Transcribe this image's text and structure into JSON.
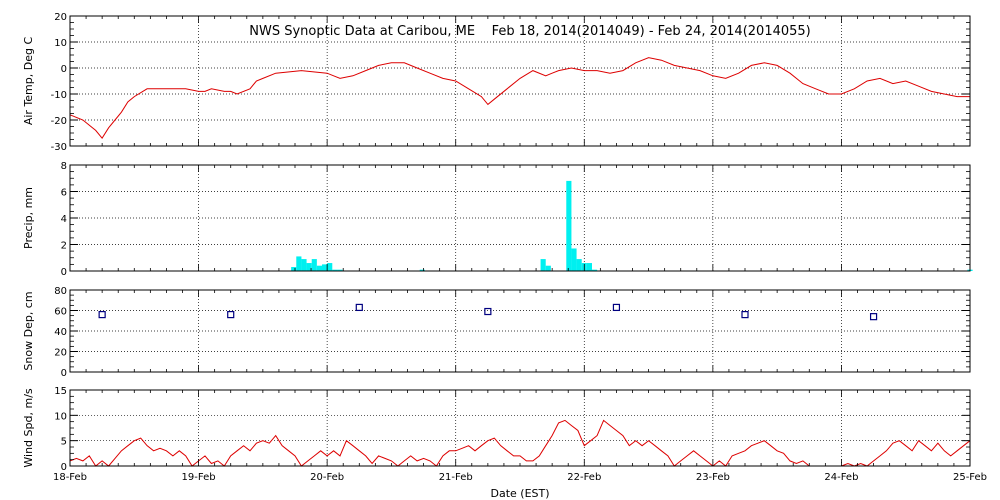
{
  "title": "NWS Synoptic Data at Caribou, ME    Feb 18, 2014(2014049) - Feb 24, 2014(2014055)",
  "xlabel": "Date (EST)",
  "colors": {
    "line": "#dd0000",
    "bar": "#00f0f0",
    "marker": "#000080",
    "grid": "#000000"
  },
  "chart_data": [
    {
      "id": "air-temp",
      "type": "line",
      "ylabel": "Air Temp, Deg C",
      "ylim": [
        -30,
        20
      ],
      "yticks": [
        -30,
        -20,
        -10,
        0,
        10,
        20
      ],
      "xlim": [
        0,
        7
      ],
      "xticks": [
        0,
        1,
        2,
        3,
        4,
        5,
        6,
        7
      ],
      "xticklabels": [
        "18-Feb",
        "19-Feb",
        "20-Feb",
        "21-Feb",
        "22-Feb",
        "23-Feb",
        "24-Feb",
        "25-Feb"
      ],
      "grid": true,
      "x": [
        0,
        0.1,
        0.2,
        0.25,
        0.3,
        0.35,
        0.4,
        0.45,
        0.5,
        0.6,
        0.8,
        0.9,
        1.0,
        1.05,
        1.1,
        1.2,
        1.25,
        1.3,
        1.4,
        1.45,
        1.5,
        1.6,
        1.8,
        2.0,
        2.05,
        2.1,
        2.2,
        2.3,
        2.4,
        2.5,
        2.6,
        2.7,
        2.8,
        2.9,
        3.0,
        3.1,
        3.2,
        3.25,
        3.3,
        3.4,
        3.5,
        3.6,
        3.7,
        3.75,
        3.8,
        3.9,
        4.0,
        4.1,
        4.2,
        4.3,
        4.4,
        4.5,
        4.6,
        4.7,
        4.8,
        4.9,
        5.0,
        5.1,
        5.2,
        5.3,
        5.4,
        5.5,
        5.6,
        5.7,
        5.8,
        5.9,
        6.0,
        6.1,
        6.2,
        6.3,
        6.4,
        6.5,
        6.6,
        6.7,
        6.8,
        6.9,
        7.0
      ],
      "y": [
        -18,
        -20,
        -24,
        -27,
        -23,
        -20,
        -17,
        -13,
        -11,
        -8,
        -8,
        -8,
        -9,
        -9,
        -8,
        -9,
        -9,
        -10,
        -8,
        -5,
        -4,
        -2,
        -1,
        -2,
        -3,
        -4,
        -3,
        -1,
        1,
        2,
        2,
        0,
        -2,
        -4,
        -5,
        -8,
        -11,
        -14,
        -12,
        -8,
        -4,
        -1,
        -3,
        -2,
        -1,
        0,
        -1,
        -1,
        -2,
        -1,
        2,
        4,
        3,
        1,
        0,
        -1,
        -3,
        -4,
        -2,
        1,
        2,
        1,
        -2,
        -6,
        -8,
        -10,
        -10,
        -8,
        -5,
        -4,
        -6,
        -5,
        -7,
        -9,
        -10,
        -11,
        -11
      ]
    },
    {
      "id": "precip",
      "type": "bar",
      "ylabel": "Precip, mm",
      "ylim": [
        0,
        8
      ],
      "yticks": [
        0,
        2,
        4,
        6,
        8
      ],
      "xlim": [
        0,
        7
      ],
      "xticks": [
        0,
        1,
        2,
        3,
        4,
        5,
        6,
        7
      ],
      "grid": true,
      "barwidth": 0.04,
      "x": [
        1.72,
        1.76,
        1.8,
        1.84,
        1.88,
        1.92,
        1.96,
        2.0,
        2.04,
        2.08,
        2.72,
        3.66,
        3.7,
        3.86,
        3.9,
        3.94,
        3.98,
        4.02,
        4.06,
        6.98
      ],
      "values": [
        0.3,
        1.1,
        0.9,
        0.6,
        0.9,
        0.4,
        0.5,
        0.6,
        0.1,
        0.1,
        0.1,
        0.9,
        0.4,
        6.8,
        1.7,
        0.9,
        0.6,
        0.6,
        0.1,
        0.1
      ]
    },
    {
      "id": "snow-depth",
      "type": "scatter",
      "ylabel": "Snow Dep, cm",
      "ylim": [
        0,
        80
      ],
      "yticks": [
        0,
        20,
        40,
        60,
        80
      ],
      "xlim": [
        0,
        7
      ],
      "xticks": [
        0,
        1,
        2,
        3,
        4,
        5,
        6,
        7
      ],
      "grid": true,
      "x": [
        0.25,
        1.25,
        2.25,
        3.25,
        4.25,
        5.25,
        6.25
      ],
      "y": [
        56,
        56,
        63,
        59,
        63,
        56,
        54
      ]
    },
    {
      "id": "wind-speed",
      "type": "line",
      "ylabel": "Wind Spd, m/s",
      "ylim": [
        0,
        15
      ],
      "yticks": [
        0,
        5,
        10,
        15
      ],
      "xlim": [
        0,
        7
      ],
      "xticks": [
        0,
        1,
        2,
        3,
        4,
        5,
        6,
        7
      ],
      "grid": true,
      "x": [
        0,
        0.05,
        0.1,
        0.15,
        0.2,
        0.25,
        0.3,
        0.35,
        0.4,
        0.45,
        0.5,
        0.55,
        0.6,
        0.65,
        0.7,
        0.75,
        0.8,
        0.85,
        0.9,
        0.95,
        1.0,
        1.05,
        1.1,
        1.15,
        1.2,
        1.25,
        1.3,
        1.35,
        1.4,
        1.45,
        1.5,
        1.55,
        1.6,
        1.65,
        1.7,
        1.75,
        1.8,
        1.85,
        1.9,
        1.95,
        2.0,
        2.05,
        2.1,
        2.15,
        2.2,
        2.25,
        2.3,
        2.35,
        2.4,
        2.45,
        2.5,
        2.55,
        2.6,
        2.65,
        2.7,
        2.75,
        2.8,
        2.85,
        2.9,
        2.95,
        3.0,
        3.05,
        3.1,
        3.15,
        3.2,
        3.25,
        3.3,
        3.35,
        3.4,
        3.45,
        3.5,
        3.55,
        3.6,
        3.65,
        3.7,
        3.75,
        3.8,
        3.85,
        3.9,
        3.95,
        4.0,
        4.05,
        4.1,
        4.15,
        4.2,
        4.25,
        4.3,
        4.35,
        4.4,
        4.45,
        4.5,
        4.55,
        4.6,
        4.65,
        4.7,
        4.75,
        4.8,
        4.85,
        4.9,
        4.95,
        5.0,
        5.05,
        5.1,
        5.15,
        5.2,
        5.25,
        5.3,
        5.35,
        5.4,
        5.45,
        5.5,
        5.55,
        5.6,
        5.65,
        5.7,
        5.75,
        5.8,
        5.85,
        5.9,
        5.95,
        6.0,
        6.05,
        6.1,
        6.15,
        6.2,
        6.25,
        6.3,
        6.35,
        6.4,
        6.45,
        6.5,
        6.55,
        6.6,
        6.65,
        6.7,
        6.75,
        6.8,
        6.85,
        6.9,
        6.95,
        7.0
      ],
      "y": [
        1,
        1.5,
        1,
        2,
        0,
        1,
        0,
        1.5,
        3,
        4,
        5,
        5.5,
        4,
        3,
        3.5,
        3,
        2,
        3,
        2,
        0,
        1,
        2,
        0.5,
        1,
        0,
        2,
        3,
        4,
        3,
        4.5,
        5,
        4.5,
        6,
        4,
        3,
        2,
        0,
        1,
        2,
        3,
        2,
        3,
        2,
        5,
        4,
        3,
        2,
        0.5,
        2,
        1.5,
        1,
        0,
        1,
        2,
        1,
        1.5,
        1,
        0,
        2,
        3,
        3,
        3.5,
        4,
        3,
        4,
        5,
        5.5,
        4,
        3,
        2,
        2,
        1,
        1,
        2,
        4,
        6,
        8.5,
        9,
        8,
        7,
        4,
        5,
        6,
        9,
        8,
        7,
        6,
        4,
        5,
        4,
        5,
        4,
        3,
        2,
        0,
        1,
        2,
        3,
        2,
        1,
        0,
        1,
        0,
        2,
        2.5,
        3,
        4,
        4.5,
        5,
        4,
        3,
        2.5,
        1,
        0.5,
        1,
        0,
        0,
        0,
        0,
        0,
        0,
        0.5,
        0,
        0.5,
        0,
        1,
        2,
        3,
        4.5,
        5,
        4,
        3,
        5,
        4,
        3,
        4.5,
        3,
        2,
        3,
        4,
        5
      ]
    }
  ]
}
